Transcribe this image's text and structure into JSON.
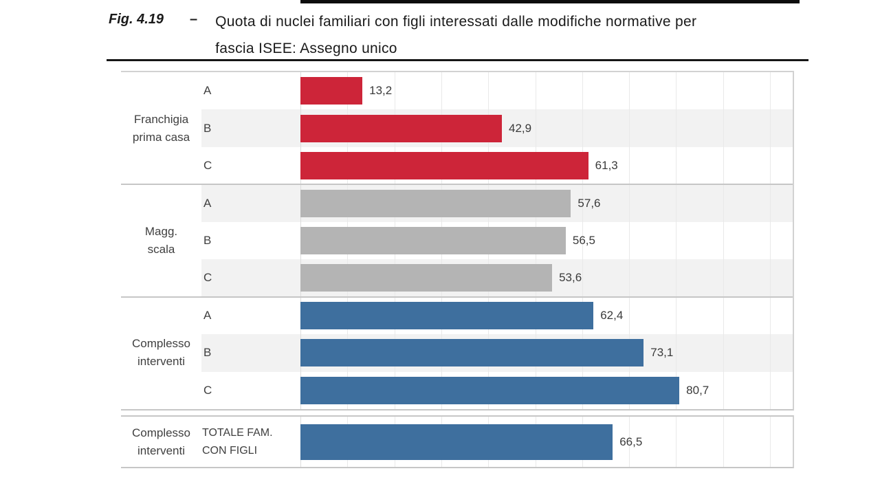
{
  "figure": {
    "label": "Fig. 4.19",
    "separator": "–",
    "title_lines": [
      "Quota di nuclei familiari con figli interessati dalle modifiche normative per",
      "fascia ISEE: Assegno unico"
    ]
  },
  "chart_data": {
    "type": "bar",
    "orientation": "horizontal",
    "title": "Quota di nuclei familiari con figli interessati dalle modifiche normative per fascia ISEE: Assegno unico",
    "xlabel": "",
    "ylabel": "",
    "xlim": [
      0,
      105
    ],
    "grid": "on",
    "grid_step": 10,
    "value_label_style": "outside end, comma decimal",
    "groups": [
      {
        "label_lines": [
          "Franchigia",
          "prima casa"
        ],
        "color": "#cd2539",
        "bars": [
          {
            "category": "A",
            "value": 13.2,
            "label": "13,2"
          },
          {
            "category": "B",
            "value": 42.9,
            "label": "42,9"
          },
          {
            "category": "C",
            "value": 61.3,
            "label": "61,3"
          }
        ]
      },
      {
        "label_lines": [
          "Magg.",
          "scala"
        ],
        "color": "#b4b4b4",
        "bars": [
          {
            "category": "A",
            "value": 57.6,
            "label": "57,6"
          },
          {
            "category": "B",
            "value": 56.5,
            "label": "56,5"
          },
          {
            "category": "C",
            "value": 53.6,
            "label": "53,6"
          }
        ]
      },
      {
        "label_lines": [
          "Complesso",
          "interventi"
        ],
        "color": "#3e6f9e",
        "bars": [
          {
            "category": "A",
            "value": 62.4,
            "label": "62,4"
          },
          {
            "category": "B",
            "value": 73.1,
            "label": "73,1"
          },
          {
            "category": "C",
            "value": 80.7,
            "label": "80,7"
          }
        ]
      }
    ],
    "total_row": {
      "label_lines": [
        "Complesso",
        "interventi"
      ],
      "category_lines": [
        "TOTALE FAM.",
        "CON FIGLI"
      ],
      "category": "TOTALE FAM. CON FIGLI",
      "value": 66.5,
      "label": "66,5",
      "color": "#3e6f9e"
    }
  },
  "colors": {
    "bar_red": "#cd2539",
    "bar_gray": "#b4b4b4",
    "bar_blue": "#3e6f9e",
    "row_stripe": "#f2f2f2",
    "gridline": "#e9e9e9",
    "group_separator": "#c6c6c6",
    "table_border": "#d2d2d2",
    "label_text": "#404040",
    "title_text": "#1a1a1a"
  }
}
